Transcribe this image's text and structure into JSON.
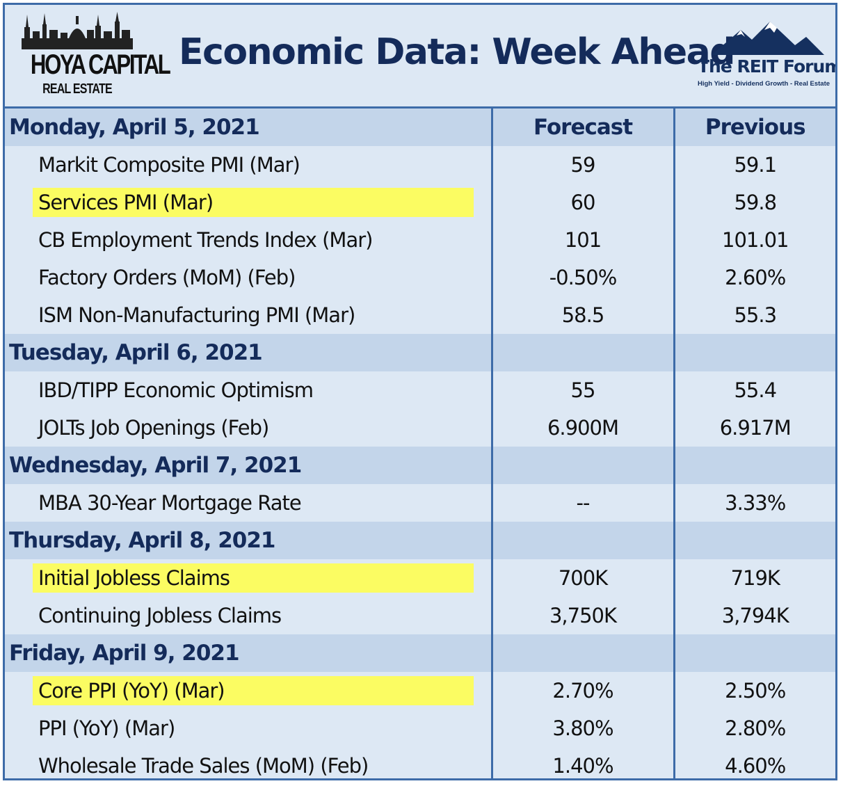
{
  "header": {
    "title": "Economic Data: Week Ahead",
    "logo_left": {
      "name": "HOYA CAPITAL",
      "sub": "REAL ESTATE"
    },
    "logo_right": {
      "name": "The REIT Forum",
      "tagline": "High Yield - Dividend Growth - Real Estate"
    }
  },
  "columns": {
    "forecast": "Forecast",
    "previous": "Previous"
  },
  "days": [
    {
      "label": "Monday, April 5, 2021",
      "rows": [
        {
          "name": "Markit Composite PMI (Mar)",
          "forecast": "59",
          "previous": "59.1",
          "highlight": false
        },
        {
          "name": "Services PMI (Mar)",
          "forecast": "60",
          "previous": "59.8",
          "highlight": true
        },
        {
          "name": "CB Employment Trends Index (Mar)",
          "forecast": "101",
          "previous": "101.01",
          "highlight": false
        },
        {
          "name": "Factory Orders (MoM) (Feb)",
          "forecast": "-0.50%",
          "previous": "2.60%",
          "highlight": false
        },
        {
          "name": "ISM Non-Manufacturing PMI (Mar)",
          "forecast": "58.5",
          "previous": "55.3",
          "highlight": false
        }
      ]
    },
    {
      "label": "Tuesday, April 6, 2021",
      "rows": [
        {
          "name": "IBD/TIPP Economic Optimism",
          "forecast": "55",
          "previous": "55.4",
          "highlight": false
        },
        {
          "name": "JOLTs Job Openings (Feb)",
          "forecast": "6.900M",
          "previous": "6.917M",
          "highlight": false
        }
      ]
    },
    {
      "label": "Wednesday, April 7, 2021",
      "rows": [
        {
          "name": "MBA 30-Year Mortgage Rate",
          "forecast": "--",
          "previous": "3.33%",
          "highlight": false
        }
      ]
    },
    {
      "label": "Thursday, April 8, 2021",
      "rows": [
        {
          "name": "Initial Jobless Claims",
          "forecast": "700K",
          "previous": "719K",
          "highlight": true
        },
        {
          "name": "Continuing Jobless Claims",
          "forecast": "3,750K",
          "previous": "3,794K",
          "highlight": false
        }
      ]
    },
    {
      "label": "Friday, April 9, 2021",
      "rows": [
        {
          "name": "Core PPI (YoY) (Mar)",
          "forecast": "2.70%",
          "previous": "2.50%",
          "highlight": true
        },
        {
          "name": "PPI (YoY) (Mar)",
          "forecast": "3.80%",
          "previous": "2.80%",
          "highlight": false
        },
        {
          "name": "Wholesale Trade Sales (MoM) (Feb)",
          "forecast": "1.40%",
          "previous": "4.60%",
          "highlight": false
        }
      ]
    }
  ],
  "colors": {
    "border": "#3d6ba8",
    "day_row": "#c3d5ea",
    "item_row": "#dde8f4",
    "highlight": "#fbfc62",
    "title": "#142b5a"
  }
}
